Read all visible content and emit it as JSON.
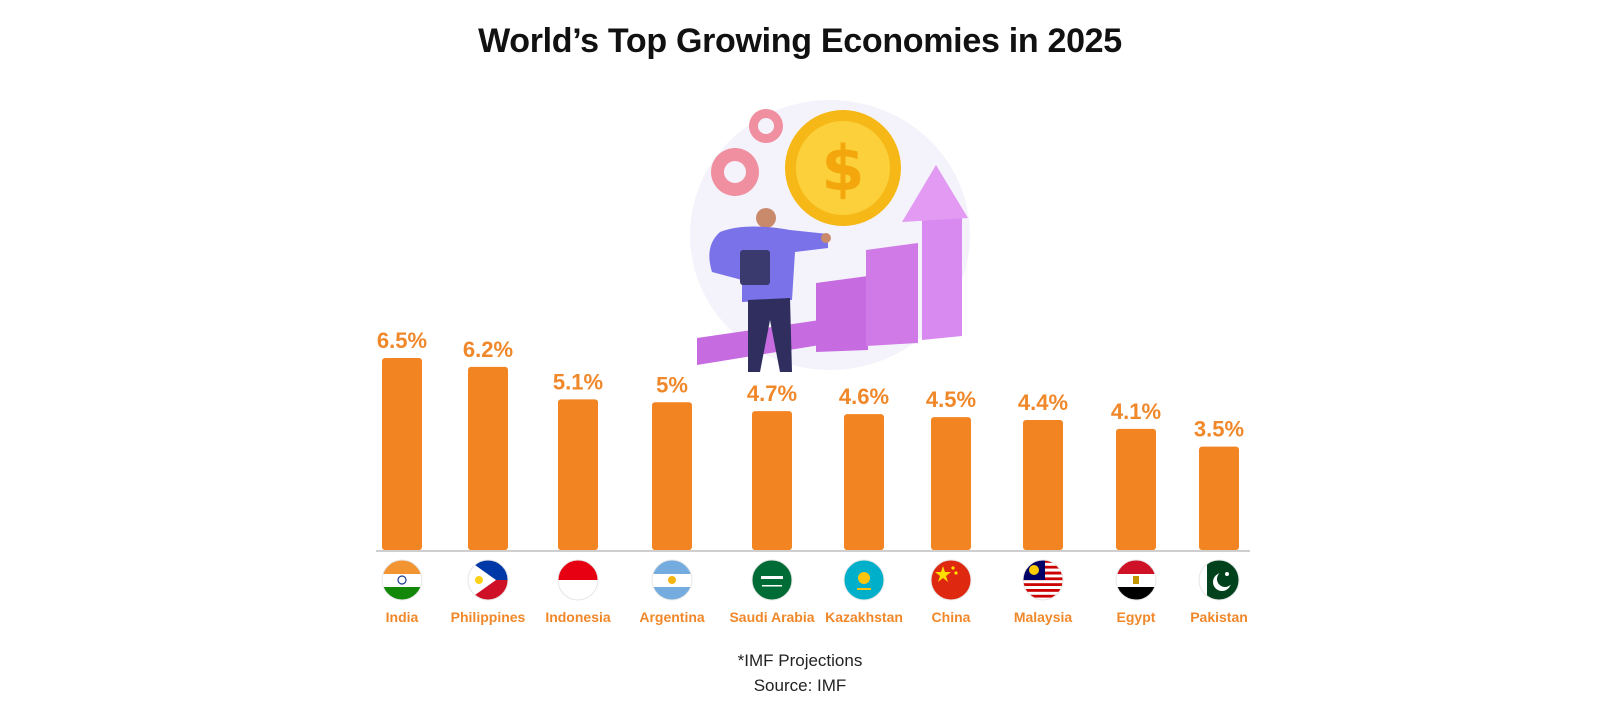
{
  "title": "World’s Top Growing Economies in 2025",
  "footnote": "*IMF Projections",
  "source": "Source: IMF",
  "colors": {
    "bar": "#f28421",
    "label": "#f0882a",
    "axis": "#cfcfcf"
  },
  "illustration": "person-with-growth-chart-and-dollar-coin-illustration",
  "chart_data": {
    "type": "bar",
    "categories": [
      "India",
      "Philippines",
      "Indonesia",
      "Argentina",
      "Saudi Arabia",
      "Kazakhstan",
      "China",
      "Malaysia",
      "Egypt",
      "Pakistan"
    ],
    "values": [
      6.5,
      6.2,
      5.1,
      5,
      4.7,
      4.6,
      4.5,
      4.4,
      4.1,
      3.5
    ],
    "value_labels": [
      "6.5%",
      "6.2%",
      "5.1%",
      "5%",
      "4.7%",
      "4.6%",
      "4.5%",
      "4.4%",
      "4.1%",
      "3.5%"
    ],
    "flags": [
      "india-flag-icon",
      "philippines-flag-icon",
      "indonesia-flag-icon",
      "argentina-flag-icon",
      "saudi-arabia-flag-icon",
      "kazakhstan-flag-icon",
      "china-flag-icon",
      "malaysia-flag-icon",
      "egypt-flag-icon",
      "pakistan-flag-icon"
    ],
    "ylim": [
      0,
      6.5
    ],
    "grid": false,
    "legend": "none"
  }
}
